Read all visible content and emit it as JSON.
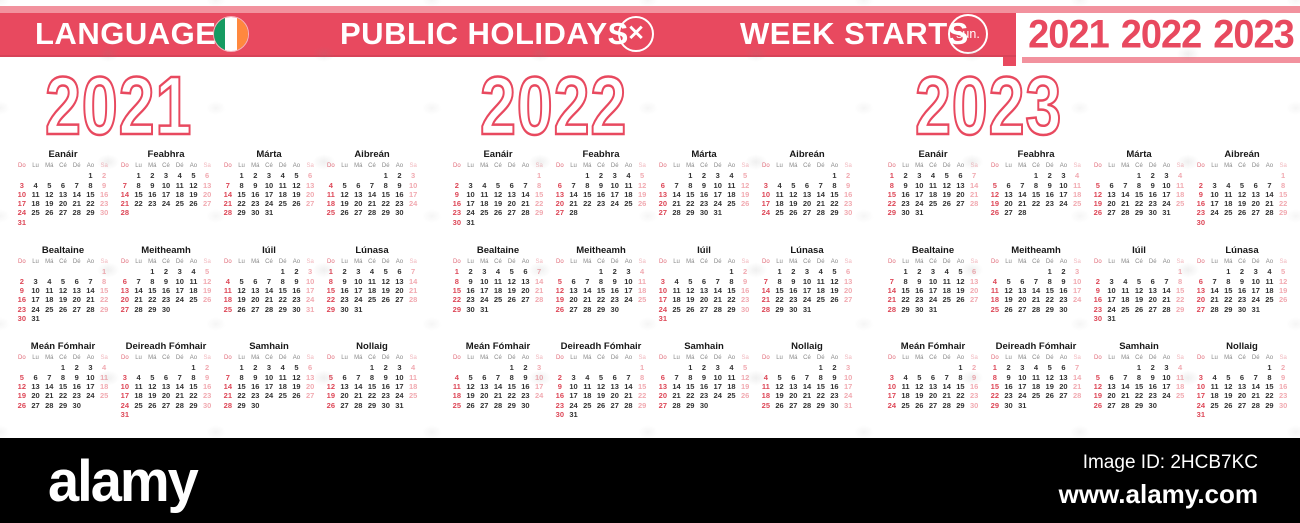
{
  "header": {
    "language_label": "LANGUAGE",
    "flag": {
      "name": "ireland-flag",
      "colors": [
        "#169b62",
        "#ffffff",
        "#ff883e"
      ]
    },
    "public_holidays_label": "PUBLIC HOLIDAYS",
    "holidays_icon_glyph": "✕",
    "week_starts_label": "WEEK STARTS",
    "week_starts_value": "sun.",
    "mini_years": [
      "2021",
      "2022",
      "2023"
    ],
    "banner_color": "#e8495f",
    "strip_color": "#f2929e"
  },
  "calendar": {
    "day_headers": [
      "Do",
      "Lu",
      "Má",
      "Cé",
      "Dé",
      "Ao",
      "Sa"
    ],
    "sunday_color": "#dd4757",
    "saturday_color": "#f1aab1",
    "weekday_color": "#333333",
    "years": [
      {
        "label": "2021",
        "months": [
          {
            "name": "Eanáir",
            "start": 5,
            "days": 31
          },
          {
            "name": "Feabhra",
            "start": 1,
            "days": 28
          },
          {
            "name": "Márta",
            "start": 1,
            "days": 31
          },
          {
            "name": "Aibreán",
            "start": 4,
            "days": 30
          },
          {
            "name": "Bealtaine",
            "start": 6,
            "days": 31
          },
          {
            "name": "Meitheamh",
            "start": 2,
            "days": 30
          },
          {
            "name": "Iúil",
            "start": 4,
            "days": 31
          },
          {
            "name": "Lúnasa",
            "start": 0,
            "days": 31
          },
          {
            "name": "Meán Fómhair",
            "start": 3,
            "days": 30
          },
          {
            "name": "Deireadh Fómhair",
            "start": 5,
            "days": 31
          },
          {
            "name": "Samhain",
            "start": 1,
            "days": 30
          },
          {
            "name": "Nollaig",
            "start": 3,
            "days": 31
          }
        ]
      },
      {
        "label": "2022",
        "months": [
          {
            "name": "Eanáir",
            "start": 6,
            "days": 31
          },
          {
            "name": "Feabhra",
            "start": 2,
            "days": 28
          },
          {
            "name": "Márta",
            "start": 2,
            "days": 31
          },
          {
            "name": "Aibreán",
            "start": 5,
            "days": 30
          },
          {
            "name": "Bealtaine",
            "start": 0,
            "days": 31
          },
          {
            "name": "Meitheamh",
            "start": 3,
            "days": 30
          },
          {
            "name": "Iúil",
            "start": 5,
            "days": 31
          },
          {
            "name": "Lúnasa",
            "start": 1,
            "days": 31
          },
          {
            "name": "Meán Fómhair",
            "start": 4,
            "days": 30
          },
          {
            "name": "Deireadh Fómhair",
            "start": 6,
            "days": 31
          },
          {
            "name": "Samhain",
            "start": 2,
            "days": 30
          },
          {
            "name": "Nollaig",
            "start": 4,
            "days": 31
          }
        ]
      },
      {
        "label": "2023",
        "months": [
          {
            "name": "Eanáir",
            "start": 0,
            "days": 31
          },
          {
            "name": "Feabhra",
            "start": 3,
            "days": 28
          },
          {
            "name": "Márta",
            "start": 3,
            "days": 31
          },
          {
            "name": "Aibreán",
            "start": 6,
            "days": 30
          },
          {
            "name": "Bealtaine",
            "start": 1,
            "days": 31
          },
          {
            "name": "Meitheamh",
            "start": 4,
            "days": 30
          },
          {
            "name": "Iúil",
            "start": 6,
            "days": 31
          },
          {
            "name": "Lúnasa",
            "start": 2,
            "days": 31
          },
          {
            "name": "Meán Fómhair",
            "start": 5,
            "days": 30
          },
          {
            "name": "Deireadh Fómhair",
            "start": 0,
            "days": 31
          },
          {
            "name": "Samhain",
            "start": 3,
            "days": 30
          },
          {
            "name": "Nollaig",
            "start": 5,
            "days": 31
          }
        ]
      }
    ]
  },
  "footer": {
    "brand": "alamy",
    "image_id": "Image ID: 2HCB7KC",
    "url": "www.alamy.com"
  }
}
